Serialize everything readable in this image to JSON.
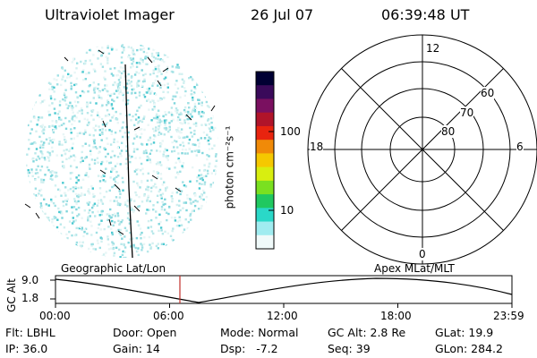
{
  "header": {
    "title": "Ultraviolet Imager",
    "date": "26 Jul 07",
    "time": "06:39:48 UT"
  },
  "colorbar": {
    "label": "photon cm⁻²s⁻¹",
    "ticks": [
      "100",
      "10"
    ],
    "colors": [
      "#000033",
      "#3a0a5a",
      "#7a1060",
      "#b0142a",
      "#e8240f",
      "#f08a08",
      "#f5c800",
      "#d8ee10",
      "#7ae020",
      "#20c860",
      "#2ad8c8",
      "#a0ecf0",
      "#f0fafa"
    ]
  },
  "polar_plot": {
    "mlt_labels": [
      "12",
      "18",
      "6",
      "0"
    ],
    "lat_labels": [
      "60",
      "70",
      "80"
    ]
  },
  "timeline": {
    "left_title": "Geographic Lat/Lon",
    "right_title": "Apex MLat/MLT",
    "ylabel": "GC Alt",
    "y_ticks": [
      "9.0",
      "1.8"
    ],
    "x_ticks": [
      "00:00",
      "06:00",
      "12:00",
      "18:00",
      "23:59"
    ],
    "marker_color": "#c0302a"
  },
  "footer": {
    "row1": [
      "Flt: LBHL",
      "Door: Open",
      "Mode: Normal",
      "GC Alt: 2.8 Re",
      "GLat: 19.9"
    ],
    "row2": [
      "IP: 36.0",
      "Gain: 14",
      "Dsp:   -7.2",
      "Seq: 39",
      "GLon: 284.2"
    ]
  }
}
